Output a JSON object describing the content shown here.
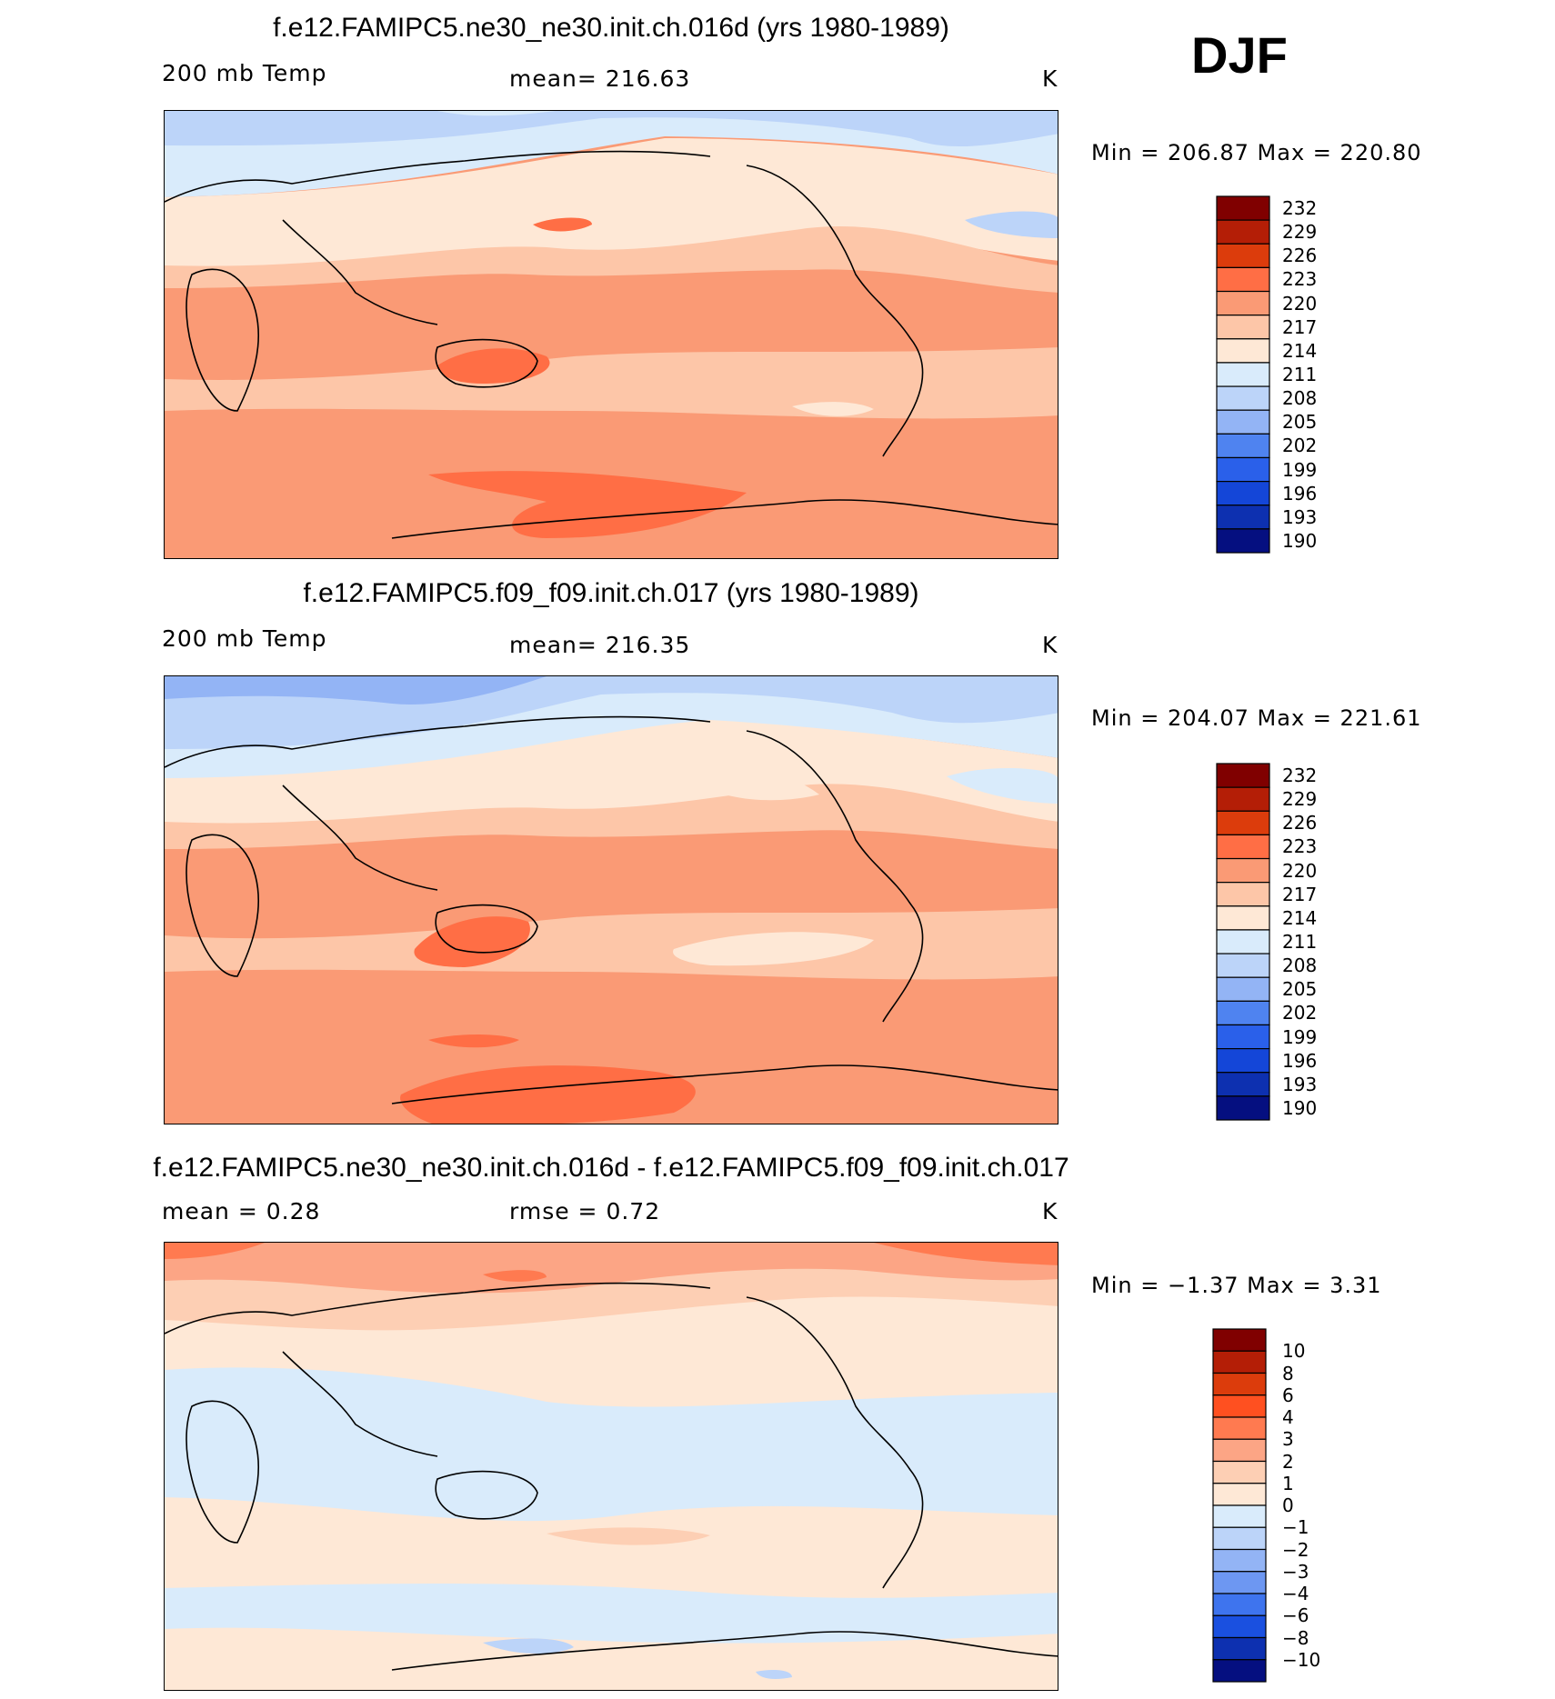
{
  "season": "DJF",
  "panels": [
    {
      "title": "f.e12.FAMIPC5.ne30_ne30.init.ch.016d (yrs 1980-1989)",
      "variable": "200 mb Temp",
      "stat": "mean=  216.63",
      "units": "K",
      "minmax": "Min  =  206.87  Max  =  220.80"
    },
    {
      "title": "f.e12.FAMIPC5.f09_f09.init.ch.017 (yrs 1980-1989)",
      "variable": "200 mb Temp",
      "stat": "mean=  216.35",
      "units": "K",
      "minmax": "Min  =  204.07  Max  =  221.61"
    },
    {
      "title": "f.e12.FAMIPC5.ne30_ne30.init.ch.016d - f.e12.FAMIPC5.f09_f09.init.ch.017",
      "variable": "mean =     0.28",
      "stat": "rmse =     0.72",
      "units": "K",
      "minmax": "Min  =    −1.37  Max  =     3.31"
    }
  ],
  "chart_data": [
    {
      "type": "heatmap",
      "title": "f.e12.FAMIPC5.ne30_ne30.init.ch.016d (yrs 1980-1989)",
      "variable": "200 mb Temp",
      "units": "K",
      "mean": 216.63,
      "min": 206.87,
      "max": 220.8,
      "colorbar_levels": [
        "232",
        "229",
        "226",
        "223",
        "220",
        "217",
        "214",
        "211",
        "208",
        "205",
        "202",
        "199",
        "196",
        "193",
        "190"
      ],
      "colorbar_colors": [
        "#800000",
        "#b41e06",
        "#dc3c0c",
        "#ff6e45",
        "#fa9a75",
        "#fdc6a8",
        "#fee8d6",
        "#d9ebfb",
        "#bcd4f9",
        "#93b4f5",
        "#4f83f0",
        "#2a60ea",
        "#1446d8",
        "#0d30b0",
        "#050f80"
      ]
    },
    {
      "type": "heatmap",
      "title": "f.e12.FAMIPC5.f09_f09.init.ch.017 (yrs 1980-1989)",
      "variable": "200 mb Temp",
      "units": "K",
      "mean": 216.35,
      "min": 204.07,
      "max": 221.61,
      "colorbar_levels": [
        "232",
        "229",
        "226",
        "223",
        "220",
        "217",
        "214",
        "211",
        "208",
        "205",
        "202",
        "199",
        "196",
        "193",
        "190"
      ],
      "colorbar_colors": [
        "#800000",
        "#b41e06",
        "#dc3c0c",
        "#ff6e45",
        "#fa9a75",
        "#fdc6a8",
        "#fee8d6",
        "#d9ebfb",
        "#bcd4f9",
        "#93b4f5",
        "#4f83f0",
        "#2a60ea",
        "#1446d8",
        "#0d30b0",
        "#050f80"
      ]
    },
    {
      "type": "heatmap",
      "title": "f.e12.FAMIPC5.ne30_ne30.init.ch.016d - f.e12.FAMIPC5.f09_f09.init.ch.017",
      "units": "K",
      "mean": 0.28,
      "rmse": 0.72,
      "min": -1.37,
      "max": 3.31,
      "colorbar_levels": [
        "10",
        "8",
        "6",
        "4",
        "3",
        "2",
        "1",
        "0",
        "−1",
        "−2",
        "−3",
        "−4",
        "−6",
        "−8",
        "−10"
      ],
      "colorbar_colors": [
        "#800000",
        "#b41e06",
        "#dc3c0c",
        "#ff5020",
        "#ff7a50",
        "#fca585",
        "#fdcfb4",
        "#fee8d6",
        "#d9ebfb",
        "#bcd4f9",
        "#93b4f5",
        "#6d97f2",
        "#3e74ee",
        "#1a50e0",
        "#0d30b0",
        "#050f80"
      ]
    }
  ]
}
